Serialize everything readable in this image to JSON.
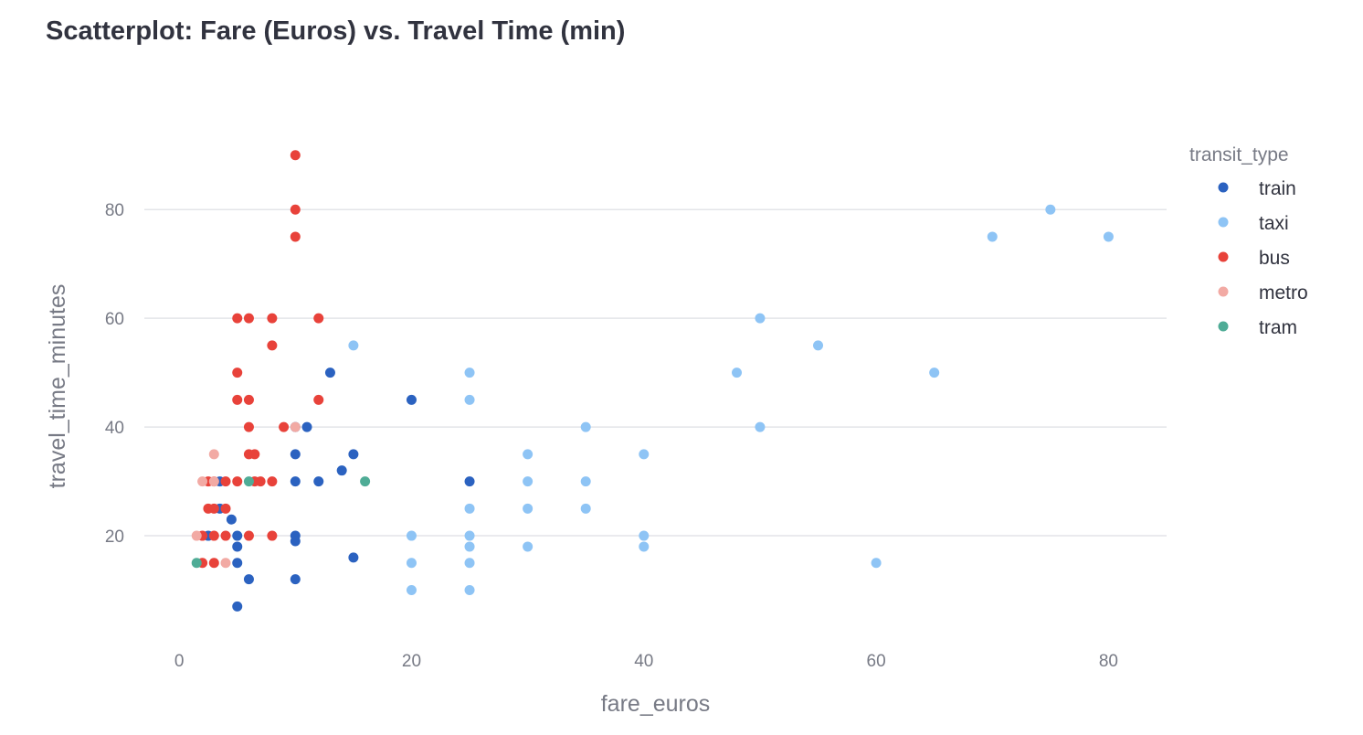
{
  "chart_data": {
    "type": "scatter",
    "title": "Scatterplot: Fare (Euros) vs. Travel Time (min)",
    "xlabel": "fare_euros",
    "ylabel": "travel_time_minutes",
    "xlim": [
      -3,
      85
    ],
    "ylim": [
      0,
      95
    ],
    "x_ticks": [
      0,
      20,
      40,
      60,
      80
    ],
    "y_ticks": [
      20,
      40,
      60,
      80
    ],
    "grid": "horizontal",
    "legend": {
      "title": "transit_type",
      "position": "right"
    },
    "series": [
      {
        "name": "train",
        "color": "#2b62c0",
        "points": [
          [
            2.5,
            20
          ],
          [
            3.5,
            30
          ],
          [
            3.5,
            25
          ],
          [
            4.5,
            23
          ],
          [
            5,
            20
          ],
          [
            5,
            18
          ],
          [
            5,
            15
          ],
          [
            5,
            7
          ],
          [
            6,
            12
          ],
          [
            10,
            40
          ],
          [
            10,
            35
          ],
          [
            10,
            30
          ],
          [
            10,
            20
          ],
          [
            10,
            19
          ],
          [
            10,
            12
          ],
          [
            11,
            40
          ],
          [
            12,
            30
          ],
          [
            13,
            50
          ],
          [
            14,
            32
          ],
          [
            15,
            35
          ],
          [
            15,
            16
          ],
          [
            20,
            45
          ],
          [
            25,
            30
          ]
        ]
      },
      {
        "name": "taxi",
        "color": "#8ec4f5",
        "points": [
          [
            15,
            55
          ],
          [
            20,
            20
          ],
          [
            20,
            15
          ],
          [
            20,
            10
          ],
          [
            25,
            50
          ],
          [
            25,
            45
          ],
          [
            25,
            25
          ],
          [
            25,
            20
          ],
          [
            25,
            18
          ],
          [
            25,
            15
          ],
          [
            25,
            10
          ],
          [
            30,
            35
          ],
          [
            30,
            30
          ],
          [
            30,
            25
          ],
          [
            30,
            18
          ],
          [
            35,
            40
          ],
          [
            35,
            30
          ],
          [
            35,
            25
          ],
          [
            40,
            35
          ],
          [
            40,
            20
          ],
          [
            40,
            18
          ],
          [
            48,
            50
          ],
          [
            50,
            60
          ],
          [
            50,
            40
          ],
          [
            55,
            55
          ],
          [
            60,
            15
          ],
          [
            65,
            50
          ],
          [
            70,
            75
          ],
          [
            75,
            80
          ],
          [
            80,
            75
          ]
        ]
      },
      {
        "name": "bus",
        "color": "#e8423a",
        "points": [
          [
            2,
            15
          ],
          [
            2,
            20
          ],
          [
            2.5,
            30
          ],
          [
            2.5,
            25
          ],
          [
            3,
            30
          ],
          [
            3,
            25
          ],
          [
            3,
            20
          ],
          [
            3,
            15
          ],
          [
            4,
            30
          ],
          [
            4,
            25
          ],
          [
            4,
            20
          ],
          [
            5,
            60
          ],
          [
            5,
            50
          ],
          [
            5,
            45
          ],
          [
            5,
            30
          ],
          [
            6,
            60
          ],
          [
            6,
            45
          ],
          [
            6,
            40
          ],
          [
            6,
            35
          ],
          [
            6,
            20
          ],
          [
            6.5,
            35
          ],
          [
            6.5,
            30
          ],
          [
            7,
            30
          ],
          [
            8,
            60
          ],
          [
            8,
            55
          ],
          [
            8,
            30
          ],
          [
            8,
            20
          ],
          [
            9,
            40
          ],
          [
            10,
            90
          ],
          [
            10,
            80
          ],
          [
            10,
            75
          ],
          [
            12,
            60
          ],
          [
            12,
            45
          ]
        ]
      },
      {
        "name": "metro",
        "color": "#f2aaa4",
        "points": [
          [
            1.5,
            20
          ],
          [
            2,
            30
          ],
          [
            3,
            35
          ],
          [
            3,
            30
          ],
          [
            4,
            15
          ],
          [
            10,
            40
          ]
        ]
      },
      {
        "name": "tram",
        "color": "#4fac96",
        "points": [
          [
            1.5,
            15
          ],
          [
            6,
            30
          ],
          [
            16,
            30
          ]
        ]
      }
    ]
  }
}
